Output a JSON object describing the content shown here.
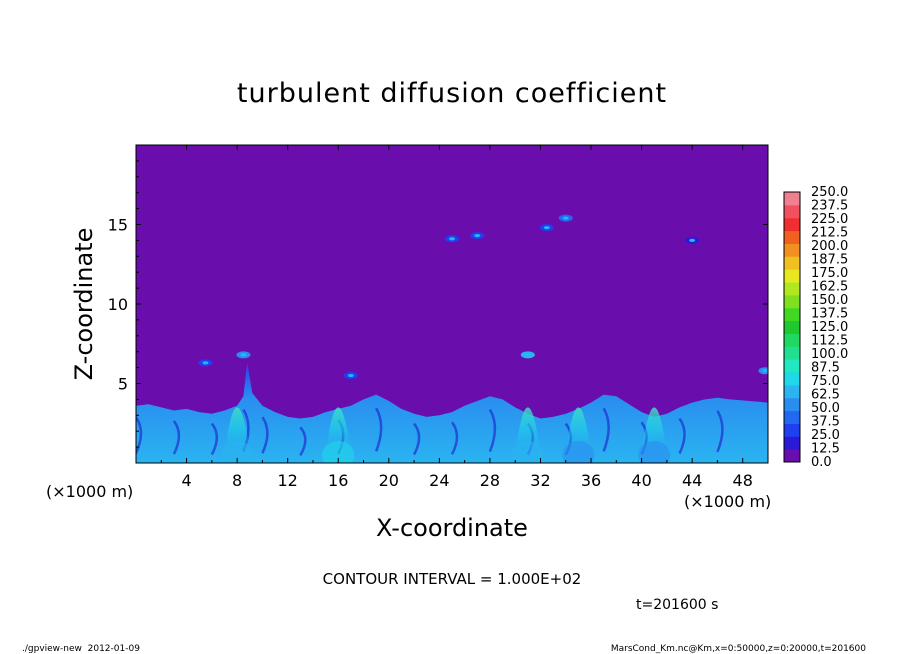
{
  "chart_data": {
    "type": "heatmap",
    "title": "turbulent diffusion coefficient",
    "xlabel": "X-coordinate",
    "ylabel": "Z-coordinate",
    "x_unit_left": "(×1000 m)",
    "x_unit_right": "(×1000 m)",
    "xlim": [
      0,
      50
    ],
    "ylim": [
      0,
      20
    ],
    "x_ticks": [
      "4",
      "8",
      "12",
      "16",
      "20",
      "24",
      "28",
      "32",
      "36",
      "40",
      "44",
      "48"
    ],
    "y_ticks": [
      "5",
      "10",
      "15"
    ],
    "colorbar_levels": [
      "0.0",
      "12.5",
      "25.0",
      "37.5",
      "50.0",
      "62.5",
      "75.0",
      "87.5",
      "100.0",
      "112.5",
      "125.0",
      "137.5",
      "150.0",
      "162.5",
      "175.0",
      "187.5",
      "200.0",
      "212.5",
      "225.0",
      "237.5",
      "250.0"
    ],
    "colorbar_colors": [
      "#6a0dad",
      "#2a1ad8",
      "#1f3ff0",
      "#2268f0",
      "#2a8ef0",
      "#2ab4f0",
      "#1fd8e8",
      "#20e8c0",
      "#20e090",
      "#20d860",
      "#20c830",
      "#40d820",
      "#80e020",
      "#b0e820",
      "#e8e820",
      "#f0c020",
      "#f09020",
      "#f06020",
      "#f03030",
      "#f05060",
      "#f08090"
    ],
    "background_color": "#6a0dad",
    "contour_interval": "CONTOUR INTERVAL = 1.000E+02",
    "time_label": "t=201600 s",
    "footer_left": "./gpview-new  2012-01-09",
    "footer_right": "MarsCond_Km.nc@Km,x=0:50000,z=0:20000,t=201600",
    "turbulent_layer_top_km": [
      3.6,
      3.7,
      3.5,
      3.3,
      3.4,
      3.2,
      3.1,
      3.3,
      3.6,
      4.2,
      6.3,
      4.4,
      3.6,
      3.2,
      2.9,
      2.8,
      2.9,
      3.2,
      3.4,
      3.6,
      4.0,
      4.3,
      3.9,
      3.4,
      3.1,
      2.9,
      3.0,
      3.2,
      3.6,
      3.9,
      4.2,
      4.0,
      3.5,
      3.1,
      2.8,
      2.9,
      3.1,
      3.4,
      3.8,
      4.3,
      4.2,
      3.7,
      3.2,
      2.9,
      3.1,
      3.5,
      3.8,
      4.0,
      4.1,
      4.0,
      3.8
    ],
    "turbulent_layer_x_km": [
      0,
      1,
      2,
      3,
      4,
      5,
      6,
      7,
      8,
      8.5,
      8.8,
      9.2,
      10,
      11,
      12,
      13,
      14,
      15,
      16,
      17,
      18,
      19,
      20,
      21,
      22,
      23,
      24,
      25,
      26,
      27,
      28,
      29,
      30,
      31,
      32,
      33,
      34,
      35,
      36,
      37,
      38,
      39,
      40,
      41,
      42,
      43,
      44,
      45,
      46,
      47,
      50
    ],
    "hotspots": [
      {
        "x": 34,
        "z": 15.4,
        "level": "37.5"
      },
      {
        "x": 32.5,
        "z": 14.8,
        "level": "25.0"
      },
      {
        "x": 27,
        "z": 14.3,
        "level": "25.0"
      },
      {
        "x": 25,
        "z": 14.1,
        "level": "25.0"
      },
      {
        "x": 44,
        "z": 14.0,
        "level": "12.5"
      },
      {
        "x": 8.5,
        "z": 6.8,
        "level": "50.0"
      },
      {
        "x": 31,
        "z": 6.8,
        "level": "62.5"
      },
      {
        "x": 5.5,
        "z": 6.3,
        "level": "25.0"
      },
      {
        "x": 49.8,
        "z": 5.8,
        "level": "50.0"
      },
      {
        "x": 17,
        "z": 5.5,
        "level": "25.0"
      }
    ],
    "bright_columns": [
      {
        "x": 8,
        "level": "62.5"
      },
      {
        "x": 16,
        "level": "75.0"
      },
      {
        "x": 31,
        "level": "62.5"
      },
      {
        "x": 35,
        "level": "50.0"
      },
      {
        "x": 41,
        "level": "50.0"
      }
    ]
  }
}
